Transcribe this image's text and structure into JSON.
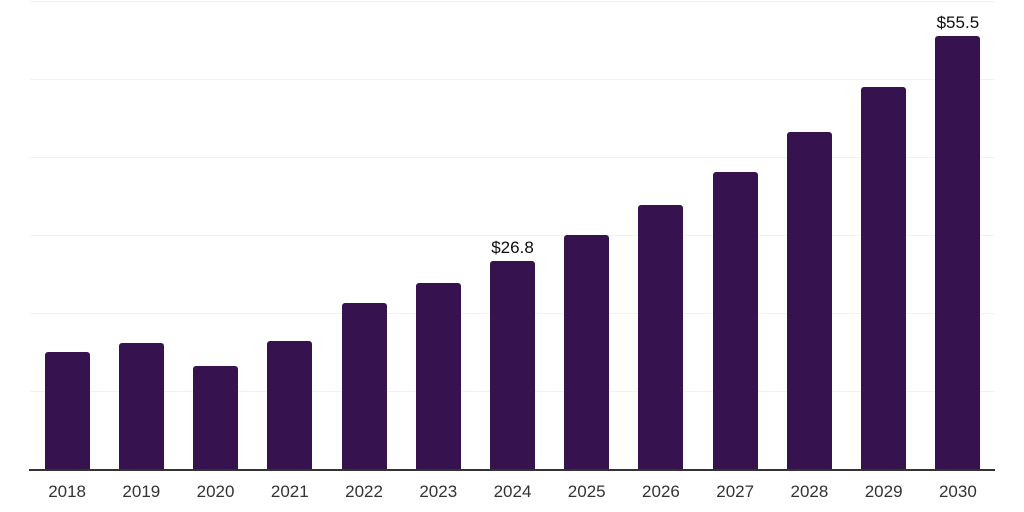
{
  "chart_data": {
    "type": "bar",
    "title": "",
    "xlabel": "",
    "ylabel": "",
    "categories": [
      "2018",
      "2019",
      "2020",
      "2021",
      "2022",
      "2023",
      "2024",
      "2025",
      "2026",
      "2027",
      "2028",
      "2029",
      "2030"
    ],
    "values": [
      15.1,
      16.2,
      13.3,
      16.5,
      21.4,
      23.9,
      26.8,
      30.1,
      33.9,
      38.1,
      43.2,
      49.0,
      55.5
    ],
    "data_labels": {
      "2024": "$26.8",
      "2030": "$55.5"
    },
    "ylim": [
      0,
      60
    ],
    "gridline_interval": 10,
    "grid": true,
    "legend": "none",
    "bar_color": "#36124e",
    "gridline_color": "#f2f2f2",
    "axis_line_color": "#333333",
    "tick_label_color": "#333333",
    "data_label_color": "#0d0d0d"
  }
}
